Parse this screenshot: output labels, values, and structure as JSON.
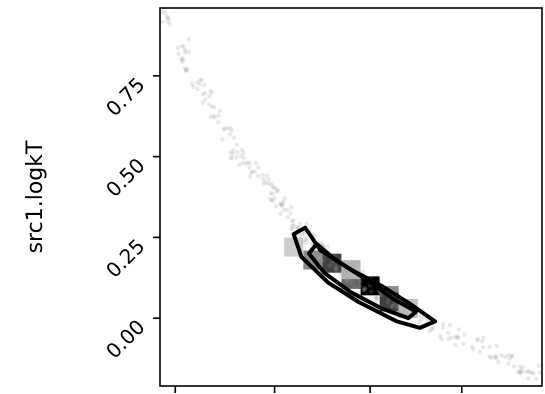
{
  "chart_data": {
    "type": "scatter",
    "title": "",
    "xlabel": "",
    "ylabel": "src1.logkT",
    "xlim": [
      0,
      1
    ],
    "ylim": [
      -0.21,
      0.96
    ],
    "x_tick_labels": [],
    "y_ticks": [
      0.0,
      0.25,
      0.5,
      0.75
    ],
    "y_tick_labels": [
      "0.00",
      "0.25",
      "0.50",
      "0.75"
    ],
    "grid": false,
    "legend": "none",
    "colors": {
      "points": "#9a9a9a",
      "contour": "#000000",
      "axes": "#000000",
      "background": "#ffffff"
    },
    "x_ticks_rel": [
      0.04,
      0.3,
      0.55,
      0.79
    ],
    "scatter": {
      "description_free": true,
      "x": [
        0.02,
        0.06,
        0.07,
        0.1,
        0.12,
        0.15,
        0.18,
        0.2,
        0.22,
        0.25,
        0.27,
        0.29,
        0.31,
        0.33,
        0.35,
        0.37,
        0.39,
        0.41,
        0.43,
        0.46,
        0.49,
        0.52,
        0.55,
        0.58,
        0.61,
        0.64,
        0.67,
        0.71,
        0.75,
        0.79,
        0.83,
        0.87,
        0.91,
        0.95,
        0.98
      ],
      "y": [
        0.93,
        0.84,
        0.78,
        0.73,
        0.68,
        0.63,
        0.57,
        0.52,
        0.5,
        0.46,
        0.42,
        0.39,
        0.37,
        0.34,
        0.3,
        0.27,
        0.25,
        0.22,
        0.2,
        0.17,
        0.14,
        0.12,
        0.1,
        0.07,
        0.05,
        0.02,
        0.01,
        -0.02,
        -0.04,
        -0.06,
        -0.08,
        -0.11,
        -0.13,
        -0.15,
        -0.17
      ]
    },
    "density_bins": [
      {
        "x": 0.4,
        "y": 0.18,
        "level": 0.45
      },
      {
        "x": 0.45,
        "y": 0.17,
        "level": 0.75
      },
      {
        "x": 0.5,
        "y": 0.12,
        "level": 0.6
      },
      {
        "x": 0.55,
        "y": 0.1,
        "level": 1.0
      },
      {
        "x": 0.6,
        "y": 0.07,
        "level": 0.45
      },
      {
        "x": 0.6,
        "y": 0.05,
        "level": 0.75
      },
      {
        "x": 0.35,
        "y": 0.22,
        "level": 0.2
      },
      {
        "x": 0.65,
        "y": 0.03,
        "level": 0.25
      },
      {
        "x": 0.5,
        "y": 0.15,
        "level": 0.3
      }
    ],
    "contours": [
      {
        "level": "outer",
        "points": [
          [
            0.38,
            0.28
          ],
          [
            0.42,
            0.21
          ],
          [
            0.5,
            0.15
          ],
          [
            0.58,
            0.1
          ],
          [
            0.66,
            0.04
          ],
          [
            0.72,
            -0.01
          ],
          [
            0.68,
            -0.03
          ],
          [
            0.62,
            -0.01
          ],
          [
            0.52,
            0.05
          ],
          [
            0.44,
            0.11
          ],
          [
            0.37,
            0.19
          ],
          [
            0.35,
            0.26
          ]
        ]
      },
      {
        "level": "inner",
        "points": [
          [
            0.41,
            0.23
          ],
          [
            0.46,
            0.18
          ],
          [
            0.54,
            0.12
          ],
          [
            0.61,
            0.06
          ],
          [
            0.67,
            0.02
          ],
          [
            0.65,
            0.0
          ],
          [
            0.58,
            0.03
          ],
          [
            0.5,
            0.08
          ],
          [
            0.43,
            0.14
          ],
          [
            0.39,
            0.2
          ]
        ]
      }
    ]
  }
}
